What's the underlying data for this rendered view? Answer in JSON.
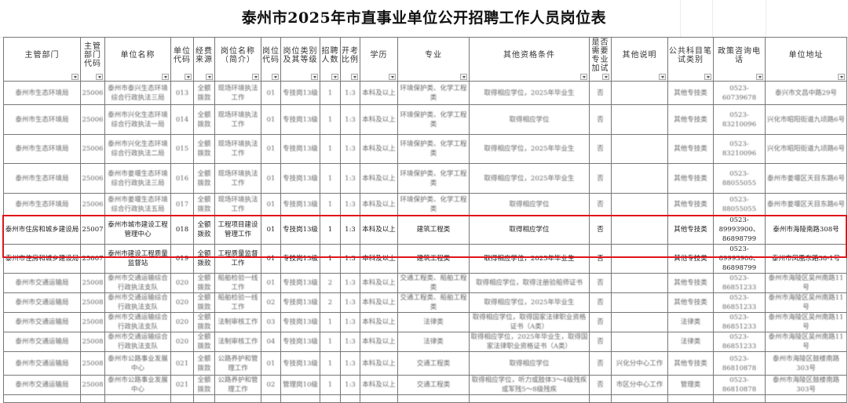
{
  "title": "泰州市2025年市直事业单位公开招聘工作人员岗位表",
  "columns": [
    "主管部门",
    "主管部门代码",
    "单位名称",
    "单位代码",
    "经费来源",
    "岗位名称（简介）",
    "岗位代码",
    "岗位类别及其等级",
    "招聘人数",
    "开考比例",
    "学历",
    "专业",
    "其他资格条件",
    "是否需要专业加试",
    "其他说明",
    "公共科目笔试类别",
    "政策咨询电话",
    "单位地址"
  ],
  "filter_icon": "dropdown-arrow-icon",
  "highlight_color": "#e0141b",
  "rows": [
    [
      "泰州市生态环境局",
      "25006",
      "泰州市泰兴生态环境综合行政执法三局",
      "013",
      "全额拨款",
      "现场环境执法工作",
      "01",
      "专技岗13级",
      "1",
      "1:3",
      "本科及以上",
      "环境保护类、化学工程类",
      "取得相应学位，2025年毕业生",
      "否",
      "",
      "其他专技类",
      "0523-60739678",
      "泰兴市文昌中路29号"
    ],
    [
      "泰州市生态环境局",
      "25006",
      "泰州市兴化生态环境综合行政执法一局",
      "014",
      "全额拨款",
      "现场环境执法工作",
      "01",
      "专技岗13级",
      "1",
      "1:3",
      "本科及以上",
      "环境保护类、化学工程类",
      "取得相应学位",
      "否",
      "",
      "其他专技类",
      "0523-83210096",
      "兴化市昭阳街道九顷路6号"
    ],
    [
      "泰州市生态环境局",
      "25006",
      "泰州市兴化生态环境综合行政执法二局",
      "015",
      "全额拨款",
      "现场环境执法工作",
      "01",
      "专技岗13级",
      "1",
      "1:3",
      "本科及以上",
      "环境保护类、化学工程类",
      "取得相应学位，2025年毕业生",
      "否",
      "",
      "其他专技类",
      "0523-83210096",
      "兴化市昭阳街道九顷路6号"
    ],
    [
      "泰州市生态环境局",
      "25006",
      "泰州市姜堰生态环境综合行政执法三局",
      "016",
      "全额拨款",
      "现场环境执法工作",
      "01",
      "专技岗13级",
      "1",
      "1:3",
      "本科及以上",
      "环境保护类、化学工程类",
      "取得相应学位，2025年毕业生",
      "否",
      "",
      "其他专技类",
      "0523-88055055",
      "泰州市姜堰区天目东路6号"
    ],
    [
      "泰州市生态环境局",
      "25006",
      "泰州市姜堰生态环境综合行政执法五局",
      "017",
      "全额拨款",
      "现场环境执法工作",
      "01",
      "专技岗13级",
      "1",
      "1:3",
      "本科及以上",
      "环境保护类、化学工程类",
      "取得相应学位",
      "否",
      "",
      "其他专技类",
      "0523-88055055",
      "泰州市姜堰区天目东路6号"
    ],
    [
      "泰州市住房和城乡建设局",
      "25007",
      "泰州市城市建设工程管理中心",
      "018",
      "全额拨款",
      "工程项目建设管理工作",
      "01",
      "专技岗13级",
      "1",
      "1:3",
      "本科及以上",
      "建筑工程类",
      "取得相应学位",
      "否",
      "",
      "其他专技类",
      "0523-89993900、86898799",
      "泰州市海陵南路308号"
    ],
    [
      "泰州市住房和城乡建设局",
      "25007",
      "泰州市建设工程质量监督站",
      "019",
      "全额拨款",
      "工程质量监督工作",
      "01",
      "专技岗13级",
      "1",
      "1:3",
      "本科及以上",
      "建筑工程类",
      "取得相应学位，2025年毕业生",
      "否",
      "",
      "其他专技类",
      "0523-89993900、86898799",
      "泰州市凤凰东路38-1号"
    ],
    [
      "泰州市交通运输局",
      "25008",
      "泰州市交通运输综合行政执法支队",
      "020",
      "全额拨款",
      "船舶检验一线工作",
      "01",
      "专技岗13级",
      "2",
      "1:3",
      "本科及以上",
      "交通工程类、船舶工程类",
      "取得相应学位，取得注册验船师证书",
      "否",
      "",
      "其他专技类",
      "0523-86851233",
      "泰州市海陵区吴州南路11号"
    ],
    [
      "泰州市交通运输局",
      "25008",
      "泰州市交通运输综合行政执法支队",
      "020",
      "全额拨款",
      "船舶检验一线工作",
      "02",
      "专技岗13级",
      "2",
      "1:3",
      "本科及以上",
      "交通工程类、船舶工程类",
      "取得相应学位，2025年毕业生",
      "否",
      "",
      "其他专技类",
      "0523-86851233",
      "泰州市海陵区吴州南路11号"
    ],
    [
      "泰州市交通运输局",
      "25008",
      "泰州市交通运输综合行政执法支队",
      "020",
      "全额拨款",
      "法制审核工作",
      "03",
      "专技岗13级",
      "1",
      "1:3",
      "本科及以上",
      "法律类",
      "取得相应学位，取得国家法律职业资格证书（A类）",
      "否",
      "",
      "法律类",
      "0523-86851233",
      "泰州市海陵区吴州南路11号"
    ],
    [
      "泰州市交通运输局",
      "25008",
      "泰州市交通运输综合行政执法支队",
      "020",
      "全额拨款",
      "法制审核工作",
      "04",
      "专技岗13级",
      "1",
      "1:3",
      "本科及以上",
      "法律类",
      "取得相应学位，2025年毕业生，取得国家法律职业资格证书（A类）",
      "否",
      "",
      "法律类",
      "0523-86851233",
      "泰州市海陵区吴州南路11号"
    ],
    [
      "泰州市交通运输局",
      "25008",
      "泰州市公路事业发展中心",
      "021",
      "全额拨款",
      "公路养护和管理工作",
      "01",
      "专技岗13级",
      "1",
      "1:3",
      "本科及以上",
      "交通工程类",
      "取得相应学位",
      "否",
      "兴化分中心工作",
      "其他专技类",
      "0523-86810878",
      "泰州市海陵区鼓楼南路303号"
    ],
    [
      "泰州市交通运输局",
      "25008",
      "泰州市公路事业发展中心",
      "021",
      "全额拨款",
      "公路养护和管理工作",
      "02",
      "管理岗10级",
      "1",
      "1:3",
      "本科及以上",
      "交通工程类",
      "取得相应学位，听力或肢体3～4级残疾或军残5～8级残疾",
      "否",
      "市区分中心工作",
      "管理类",
      "0523-86810878",
      "泰州市海陵区鼓楼南路303号"
    ]
  ]
}
